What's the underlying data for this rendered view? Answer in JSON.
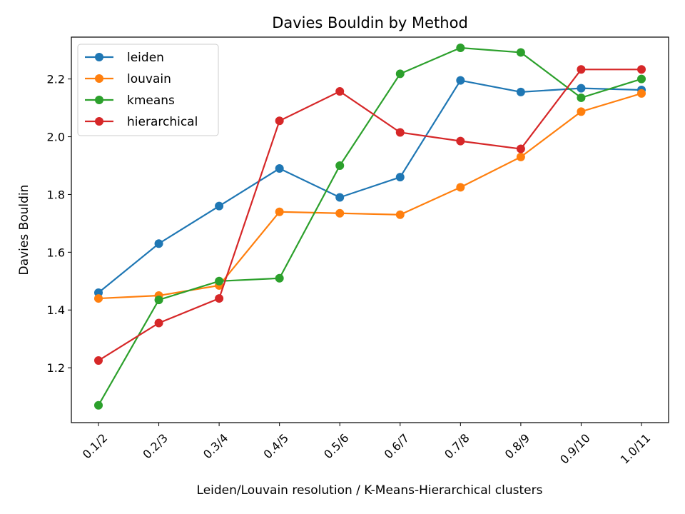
{
  "chart_data": {
    "type": "line",
    "title": "Davies Bouldin by Method",
    "xlabel": "Leiden/Louvain resolution  /  K-Means-Hierarchical clusters",
    "ylabel": "Davies Bouldin",
    "categories": [
      "0.1/2",
      "0.2/3",
      "0.3/4",
      "0.4/5",
      "0.5/6",
      "0.6/7",
      "0.7/8",
      "0.8/9",
      "0.9/10",
      "1.0/11"
    ],
    "yticks": [
      "1.2",
      "1.4",
      "1.6",
      "1.8",
      "2.0",
      "2.2"
    ],
    "ylim": [
      1.01,
      2.345
    ],
    "grid": false,
    "legend_position": "upper-left",
    "series": [
      {
        "name": "leiden",
        "color": "#1f77b4",
        "values": [
          1.46,
          1.63,
          1.76,
          1.89,
          1.79,
          1.86,
          2.195,
          2.155,
          2.168,
          2.162
        ]
      },
      {
        "name": "louvain",
        "color": "#ff7f0e",
        "values": [
          1.44,
          1.45,
          1.485,
          1.74,
          1.735,
          1.73,
          1.825,
          1.93,
          2.087,
          2.15
        ]
      },
      {
        "name": "kmeans",
        "color": "#2ca02c",
        "values": [
          1.07,
          1.435,
          1.5,
          1.51,
          1.9,
          2.218,
          2.308,
          2.292,
          2.135,
          2.2
        ]
      },
      {
        "name": "hierarchical",
        "color": "#d62728",
        "values": [
          1.225,
          1.355,
          1.44,
          2.055,
          2.157,
          2.015,
          1.985,
          1.958,
          2.233,
          2.233
        ]
      }
    ]
  }
}
